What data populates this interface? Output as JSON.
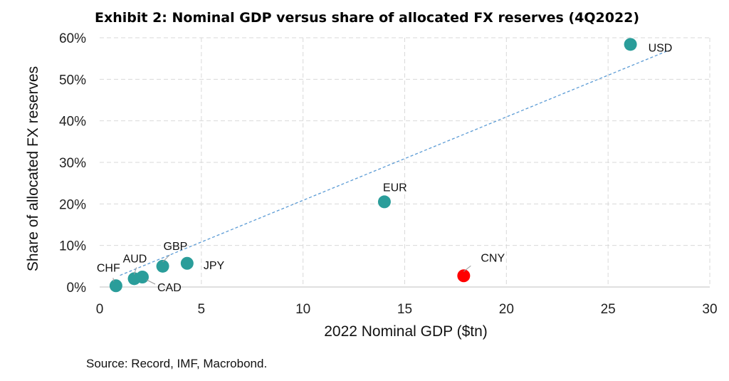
{
  "chart_data": {
    "type": "scatter",
    "title": "Exhibit 2: Nominal GDP versus share of allocated FX reserves (4Q2022)",
    "xlabel": "2022 Nominal GDP ($tn)",
    "ylabel": "Share of allocated FX reserves",
    "xlim": [
      0,
      30
    ],
    "ylim": [
      0,
      60
    ],
    "xticks": [
      "0",
      "5",
      "10",
      "15",
      "20",
      "25",
      "30"
    ],
    "yticks": [
      "0%",
      "10%",
      "20%",
      "30%",
      "40%",
      "50%",
      "60%"
    ],
    "grid": true,
    "points": [
      {
        "label": "USD",
        "x": 26.1,
        "y": 58.4,
        "color": "#2a9d9a"
      },
      {
        "label": "EUR",
        "x": 14.0,
        "y": 20.5,
        "color": "#2a9d9a"
      },
      {
        "label": "CNY",
        "x": 17.9,
        "y": 2.7,
        "color": "#ff0000"
      },
      {
        "label": "JPY",
        "x": 4.3,
        "y": 5.7,
        "color": "#2a9d9a"
      },
      {
        "label": "GBP",
        "x": 3.1,
        "y": 5.0,
        "color": "#2a9d9a"
      },
      {
        "label": "CAD",
        "x": 2.1,
        "y": 2.4,
        "color": "#2a9d9a"
      },
      {
        "label": "AUD",
        "x": 1.7,
        "y": 2.0,
        "color": "#2a9d9a"
      },
      {
        "label": "CHF",
        "x": 0.8,
        "y": 0.3,
        "color": "#2a9d9a"
      }
    ],
    "trendline": {
      "x": [
        1.0,
        28.0
      ],
      "y": [
        2.8,
        57.0
      ],
      "style": "dashed",
      "color": "#5b9bd5"
    },
    "source": "Source: Record, IMF, Macrobond."
  }
}
